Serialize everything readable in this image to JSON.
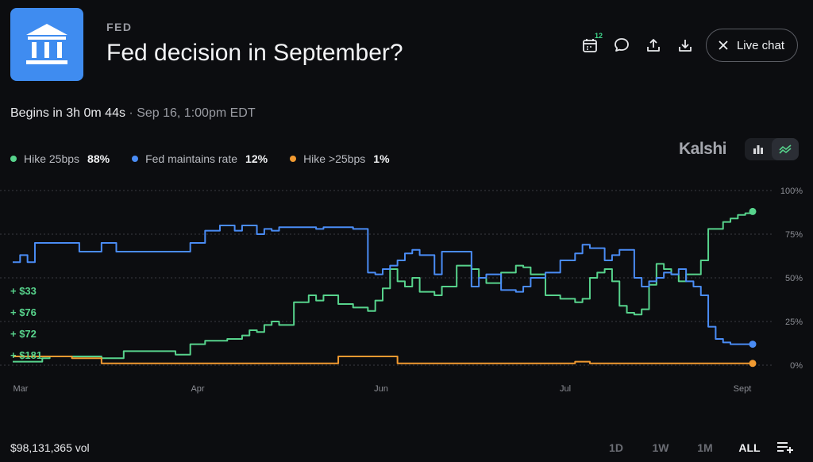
{
  "header": {
    "category": "FED",
    "title": "Fed decision in September?",
    "logo_icon": "bank-building-icon",
    "calendar_badge": "12",
    "live_chat_label": "Live chat"
  },
  "timing": {
    "begins": "Begins in 3h 0m 44s",
    "separator": " · ",
    "date": "Sep 16, 1:00pm EDT"
  },
  "legend": [
    {
      "name": "Hike 25bps",
      "value": "88%",
      "color": "#57d38c"
    },
    {
      "name": "Fed maintains rate",
      "value": "12%",
      "color": "#4a8cf5"
    },
    {
      "name": "Hike >25bps",
      "value": "1%",
      "color": "#f19a31"
    }
  ],
  "brand": "Kalshi",
  "footer": {
    "volume": "$98,131,365 vol",
    "ranges": [
      "1D",
      "1W",
      "1M",
      "ALL"
    ],
    "active_range": "ALL"
  },
  "chart_data": {
    "type": "line",
    "x_tick_labels": [
      "Mar",
      "Apr",
      "Jun",
      "Jul",
      "Sept"
    ],
    "y_tick_labels": [
      "100%",
      "75%",
      "50%",
      "25%",
      "0%"
    ],
    "ylim": [
      0,
      100
    ],
    "grid": true,
    "trade_annotations": [
      "+ $33",
      "+ $76",
      "+ $72",
      "+ $181"
    ],
    "series": [
      {
        "name": "Hike 25bps",
        "color": "#57d38c",
        "x": [
          0,
          2,
          4,
          5,
          7,
          8,
          12,
          15,
          18,
          20,
          22,
          24,
          26,
          28,
          29,
          30,
          31,
          32,
          33,
          34,
          35,
          36,
          38,
          40,
          41,
          42,
          44,
          46,
          48,
          49,
          50,
          51,
          52,
          53,
          54,
          55,
          56,
          57,
          58,
          60,
          62,
          63,
          64,
          66,
          68,
          69,
          70,
          72,
          74,
          76,
          77,
          78,
          79,
          80,
          81,
          82,
          83,
          84,
          85,
          86,
          87,
          88,
          89,
          90,
          91,
          92,
          93,
          94,
          95,
          96,
          97,
          98,
          99,
          100
        ],
        "values": [
          2,
          2,
          4,
          5,
          5,
          5,
          4,
          8,
          8,
          8,
          6,
          12,
          14,
          14,
          15,
          15,
          17,
          20,
          19,
          23,
          25,
          23,
          36,
          40,
          37,
          40,
          35,
          33,
          31,
          37,
          44,
          55,
          48,
          45,
          50,
          42,
          42,
          40,
          45,
          57,
          55,
          50,
          47,
          53,
          57,
          56,
          52,
          40,
          38,
          36,
          38,
          50,
          53,
          55,
          48,
          34,
          30,
          29,
          32,
          46,
          58,
          55,
          52,
          48,
          52,
          52,
          60,
          78,
          78,
          82,
          84,
          86,
          87,
          88
        ]
      },
      {
        "name": "Fed maintains rate",
        "color": "#4a8cf5",
        "x": [
          0,
          1,
          2,
          3,
          5,
          6,
          7,
          8,
          9,
          11,
          12,
          14,
          15,
          17,
          18,
          20,
          22,
          24,
          26,
          28,
          29,
          30,
          31,
          32,
          33,
          34,
          35,
          36,
          38,
          40,
          41,
          42,
          44,
          46,
          48,
          49,
          50,
          51,
          52,
          53,
          54,
          55,
          56,
          57,
          58,
          59,
          60,
          62,
          63,
          64,
          66,
          68,
          69,
          70,
          72,
          74,
          76,
          77,
          78,
          79,
          80,
          81,
          82,
          83,
          84,
          85,
          86,
          87,
          88,
          89,
          90,
          91,
          92,
          93,
          94,
          95,
          96,
          97,
          98,
          99,
          100
        ],
        "values": [
          59,
          63,
          59,
          70,
          70,
          70,
          70,
          70,
          65,
          65,
          70,
          65,
          65,
          65,
          65,
          65,
          65,
          70,
          77,
          80,
          80,
          77,
          80,
          80,
          75,
          78,
          77,
          79,
          79,
          79,
          78,
          79,
          79,
          78,
          53,
          52,
          55,
          57,
          60,
          64,
          66,
          63,
          63,
          52,
          65,
          65,
          65,
          45,
          50,
          52,
          43,
          42,
          45,
          50,
          53,
          60,
          64,
          69,
          67,
          67,
          60,
          63,
          66,
          66,
          50,
          45,
          48,
          50,
          53,
          52,
          55,
          48,
          45,
          40,
          22,
          15,
          13,
          12,
          12,
          12,
          12
        ]
      },
      {
        "name": "Hike >25bps",
        "color": "#f19a31",
        "x": [
          0,
          5,
          8,
          10,
          12,
          20,
          24,
          30,
          33,
          35,
          40,
          44,
          48,
          50,
          52,
          55,
          58,
          60,
          62,
          70,
          72,
          74,
          76,
          78,
          80,
          85,
          88,
          90,
          92,
          95,
          98,
          100
        ],
        "values": [
          5,
          5,
          4,
          4,
          1,
          1,
          1,
          1,
          1,
          1,
          1,
          5,
          5,
          5,
          1,
          1,
          1,
          1,
          1,
          1,
          1,
          1,
          2,
          1,
          1,
          1,
          1,
          1,
          1,
          1,
          1,
          1
        ]
      }
    ]
  }
}
